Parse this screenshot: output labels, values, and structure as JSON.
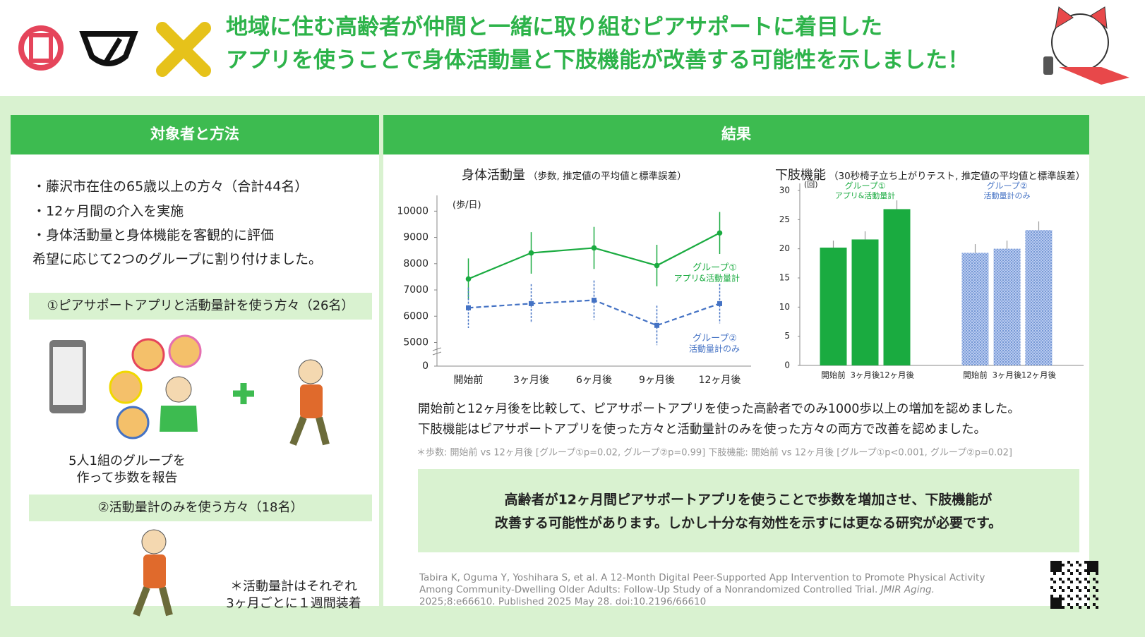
{
  "header": {
    "title_lines": [
      "地域に住む高齢者が仲間と一緒に取り組むピアサポートに着目した",
      "アプリを使うことで身体活動量と下肢機能が改善する可能性を示しました！"
    ]
  },
  "methods": {
    "heading": "対象者と方法",
    "bullets": [
      "・藤沢市在住の65歳以上の方々（合計44名）",
      "・12ヶ月間の介入を実施",
      "・身体活動量と身体機能を客観的に評価"
    ],
    "assignment": "希望に応じて2つのグループに割り付けました。",
    "group1": "①ピアサポートアプリと活動量計を使う方々（26名）",
    "group1_note_lines": [
      "5人1組のグループを",
      "作って歩数を報告"
    ],
    "group2": "②活動量計のみを使う方々（18名）",
    "group2_note_lines": [
      "＊活動量計はそれぞれ",
      "3ヶ月ごとに１週間装着"
    ]
  },
  "results": {
    "heading": "結果",
    "findings": [
      "開始前と12ヶ月後を比較して、ピアサポートアプリを使った高齢者でのみ1000歩以上の増加を認めました。",
      "下肢機能はピアサポートアプリを使った方々と活動量計のみを使った方々の両方で改善を認めました。"
    ],
    "footnote": "＊歩数: 開始前 vs 12ヶ月後 [グループ①p=0.02, グループ②p=0.99] 下肢機能: 開始前 vs 12ヶ月後 [グループ①p<0.001, グループ②p=0.02]",
    "conclusion_lines": [
      "高齢者が12ヶ月間ピアサポートアプリを使うことで歩数を増加させ、下肢機能が",
      "改善する可能性があります。しかし十分な有効性を示すには更なる研究が必要です。"
    ],
    "citation": {
      "lines": [
        "Tabira K, Oguma Y, Yoshihara S, et al. A 12-Month Digital Peer-Supported App Intervention to Promote Physical Activity",
        "Among Community-Dwelling Older Adults: Follow-Up Study of a Nonrandomized Controlled Trial.",
        "2025;8:e66610. Published 2025 May 28. doi:10.2196/66610"
      ],
      "journal": "JMIR Aging."
    }
  },
  "chart_data": [
    {
      "type": "line",
      "title": "身体活動量",
      "subtitle": "（歩数, 推定値の平均値と標準誤差）",
      "y_label": "(歩/日)",
      "categories": [
        "開始前",
        "3ヶ月後",
        "6ヶ月後",
        "9ヶ月後",
        "12ヶ月後"
      ],
      "ylim": [
        4100,
        10600
      ],
      "yticks": [
        0,
        5000,
        6000,
        7000,
        8000,
        9000,
        10000
      ],
      "axis_break": true,
      "series": [
        {
          "name": "グループ①",
          "description": "アプリ&活動量計",
          "color": "#1aab40",
          "dash": false,
          "values": [
            7420,
            8410,
            8600,
            7930,
            9170
          ],
          "errors": [
            780,
            790,
            800,
            790,
            800
          ]
        },
        {
          "name": "グループ②",
          "description": "活動量計のみ",
          "color": "#4472c4",
          "dash": true,
          "values": [
            6320,
            6480,
            6610,
            5650,
            6480
          ],
          "errors": [
            770,
            740,
            750,
            750,
            750
          ]
        }
      ]
    },
    {
      "type": "bar",
      "title": "下肢機能",
      "subtitle": "（30秒椅子立ち上がりテスト, 推定値の平均値と標準誤差）",
      "y_label": "(回)",
      "categories": [
        "開始前",
        "3ヶ月後",
        "12ヶ月後"
      ],
      "ylim": [
        0,
        30
      ],
      "yticks": [
        0,
        5,
        10,
        15,
        20,
        25,
        30
      ],
      "series": [
        {
          "name": "グループ①",
          "description": "アプリ&活動量計",
          "color": "#1aab40",
          "values": [
            20.2,
            21.6,
            26.8
          ],
          "errors": [
            1.2,
            1.4,
            1.5
          ]
        },
        {
          "name": "グループ②",
          "description": "活動量計のみ",
          "color": "#4472c4",
          "values": [
            19.3,
            20.0,
            23.2
          ],
          "errors": [
            1.5,
            1.4,
            1.5
          ]
        }
      ]
    }
  ]
}
